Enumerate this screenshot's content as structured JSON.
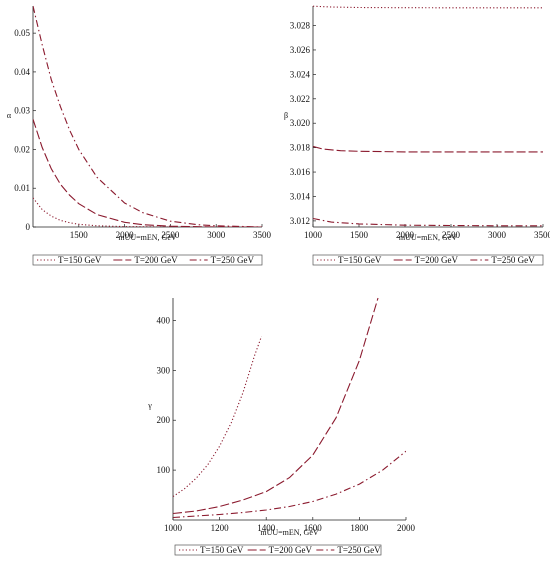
{
  "colors": {
    "series": "#8b1a2e",
    "axis": "#222222",
    "text": "#111111"
  },
  "legend_labels": [
    "T=150 GeV",
    "T=200 GeV",
    "T=250 GeV"
  ],
  "chart_data": [
    {
      "type": "line",
      "xlabel": "mUU=mEN, GeV",
      "ylabel": "α",
      "xlim": [
        1000,
        3500
      ],
      "ylim": [
        0,
        0.057
      ],
      "xticks": [
        1500,
        2000,
        2500,
        3000,
        3500
      ],
      "yticks": [
        0,
        0.01,
        0.02,
        0.03,
        0.04,
        0.05
      ],
      "ytick_labels": [
        "0",
        "0.01",
        "0.02",
        "0.03",
        "0.04",
        "0.05"
      ],
      "legend_position": "bottom",
      "series": [
        {
          "name": "T=150 GeV",
          "dash": "dot",
          "x": [
            1000,
            1100,
            1200,
            1300,
            1400,
            1500,
            1700,
            2000,
            2500,
            3000,
            3500
          ],
          "y": [
            0.0075,
            0.0045,
            0.0028,
            0.0017,
            0.0011,
            0.0007,
            0.0003,
            0.0001,
            0.0,
            0.0,
            0.0
          ]
        },
        {
          "name": "T=200 GeV",
          "dash": "dash",
          "x": [
            1000,
            1100,
            1200,
            1300,
            1400,
            1500,
            1700,
            2000,
            2200,
            2500,
            3000,
            3500
          ],
          "y": [
            0.0278,
            0.0205,
            0.015,
            0.011,
            0.0082,
            0.006,
            0.0032,
            0.0012,
            0.0006,
            0.0002,
            0.0,
            0.0
          ]
        },
        {
          "name": "T=250 GeV",
          "dash": "dashdot",
          "x": [
            1000,
            1100,
            1200,
            1300,
            1400,
            1500,
            1700,
            2000,
            2200,
            2500,
            2800,
            3000,
            3500
          ],
          "y": [
            0.057,
            0.047,
            0.038,
            0.031,
            0.025,
            0.02,
            0.0128,
            0.0062,
            0.0037,
            0.0015,
            0.0006,
            0.0003,
            0.0
          ]
        }
      ]
    },
    {
      "type": "line",
      "xlabel": "mUU=mEN, GeV",
      "ylabel": "β",
      "xlim": [
        1000,
        3500
      ],
      "ylim": [
        3.0115,
        3.0296
      ],
      "xticks": [
        1000,
        1500,
        2000,
        2500,
        3000,
        3500
      ],
      "yticks": [
        3.012,
        3.014,
        3.016,
        3.018,
        3.02,
        3.022,
        3.024,
        3.026,
        3.028
      ],
      "ytick_labels": [
        "3.012",
        "3.014",
        "3.016",
        "3.018",
        "3.020",
        "3.022",
        "3.024",
        "3.026",
        "3.028"
      ],
      "legend_position": "bottom",
      "series": [
        {
          "name": "T=150 GeV",
          "dash": "dot",
          "x": [
            1000,
            1200,
            1500,
            2000,
            2500,
            3000,
            3500
          ],
          "y": [
            3.02958,
            3.02952,
            3.02948,
            3.02946,
            3.02945,
            3.02945,
            3.02945
          ]
        },
        {
          "name": "T=200 GeV",
          "dash": "dash",
          "x": [
            1000,
            1100,
            1300,
            1500,
            2000,
            2500,
            3000,
            3500
          ],
          "y": [
            3.0181,
            3.0179,
            3.01775,
            3.0177,
            3.01765,
            3.01765,
            3.01765,
            3.01765
          ]
        },
        {
          "name": "T=250 GeV",
          "dash": "dashdot",
          "x": [
            1000,
            1200,
            1500,
            2000,
            2500,
            3000,
            3500
          ],
          "y": [
            3.0122,
            3.0119,
            3.01175,
            3.01165,
            3.01162,
            3.0116,
            3.0116
          ]
        }
      ]
    },
    {
      "type": "line",
      "xlabel": "mUU=mEN, GeV",
      "ylabel": "γ",
      "xlim": [
        1000,
        2000
      ],
      "ylim": [
        0,
        445
      ],
      "xticks": [
        1000,
        1200,
        1400,
        1600,
        1800,
        2000
      ],
      "yticks": [
        100,
        200,
        300,
        400
      ],
      "ytick_labels": [
        "100",
        "200",
        "300",
        "400"
      ],
      "legend_position": "bottom",
      "series": [
        {
          "name": "T=150 GeV",
          "dash": "dot",
          "x": [
            1000,
            1050,
            1100,
            1150,
            1200,
            1250,
            1300,
            1350,
            1380
          ],
          "y": [
            47,
            63,
            84,
            111,
            148,
            195,
            255,
            330,
            368
          ]
        },
        {
          "name": "T=200 GeV",
          "dash": "dash",
          "x": [
            1000,
            1100,
            1200,
            1300,
            1400,
            1500,
            1600,
            1700,
            1800,
            1880
          ],
          "y": [
            13,
            18,
            27,
            40,
            57,
            85,
            130,
            205,
            320,
            445
          ]
        },
        {
          "name": "T=250 GeV",
          "dash": "dashdot",
          "x": [
            1000,
            1100,
            1200,
            1300,
            1400,
            1500,
            1600,
            1700,
            1800,
            1900,
            2000
          ],
          "y": [
            5,
            8,
            11,
            15,
            20,
            27,
            37,
            52,
            72,
            100,
            138
          ]
        }
      ]
    }
  ]
}
